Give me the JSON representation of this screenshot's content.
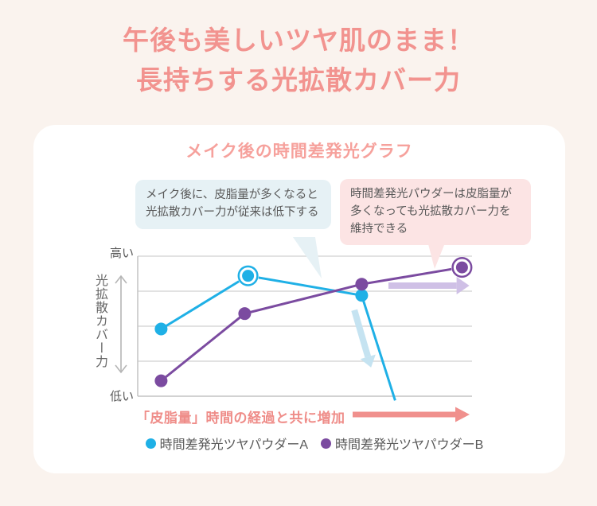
{
  "page": {
    "background": "#faf3ee",
    "card_background": "#ffffff"
  },
  "header": {
    "title_line1": "午後も美しいツヤ肌のまま！",
    "title_line2": "長持ちする光拡散カバー力",
    "title_color": "#f2938f"
  },
  "chart": {
    "title": "メイク後の時間差発光グラフ",
    "title_color": "#f6a19c",
    "callouts": {
      "left": {
        "text": "メイク後に、皮脂量が多くなると光拡散カバー力が従来は低下する",
        "bg": "#e6f1f5"
      },
      "right": {
        "text": "時間差発光パウダーは皮脂量が多くなっても光拡散カバー力を維持できる",
        "bg": "#fce4e4"
      }
    },
    "y_axis": {
      "high_label": "高い",
      "low_label": "低い",
      "title": "光拡散カバー力",
      "arrow_color": "#b5b5b5"
    },
    "x_axis": {
      "caption": "「皮脂量」時間の経過と共に増加",
      "arrow_color": "#f0908d"
    },
    "legend": [
      {
        "label": "時間差発光ツヤパウダーA",
        "color": "#1fb0e6"
      },
      {
        "label": "時間差発光ツヤパウダーB",
        "color": "#7b4ba0"
      }
    ],
    "colors": {
      "grid": "#d8d8d8",
      "axis": "#c3c3c3"
    }
  },
  "chart_data": {
    "type": "line",
    "title": "メイク後の時間差発光グラフ",
    "xlabel": "「皮脂量」時間の経過と共に増加",
    "ylabel": "光拡散カバー力（低い〜高い）",
    "xlim": [
      0,
      1
    ],
    "ylim": [
      0,
      1
    ],
    "grid": true,
    "legend_position": "bottom",
    "series": [
      {
        "name": "時間差発光ツヤパウダーA",
        "color": "#1fb0e6",
        "points": [
          {
            "x": 0.07,
            "y": 0.48,
            "marker": "dot"
          },
          {
            "x": 0.33,
            "y": 0.86,
            "marker": "ring"
          },
          {
            "x": 0.67,
            "y": 0.72,
            "marker": "dot"
          },
          {
            "x": 0.77,
            "y": -0.03,
            "marker": "none"
          }
        ]
      },
      {
        "name": "時間差発光ツヤパウダーB",
        "color": "#7b4ba0",
        "points": [
          {
            "x": 0.07,
            "y": 0.11,
            "marker": "dot"
          },
          {
            "x": 0.32,
            "y": 0.59,
            "marker": "dot"
          },
          {
            "x": 0.67,
            "y": 0.8,
            "marker": "dot"
          },
          {
            "x": 0.97,
            "y": 0.92,
            "marker": "ring"
          }
        ]
      }
    ],
    "annotations": [
      {
        "type": "arrow",
        "meaning": "カバー力を維持できる（B）",
        "color": "#cfc0e6",
        "from": [
          0.75,
          0.79
        ],
        "to": [
          0.992,
          0.79
        ],
        "shaft": 8,
        "head_len": 16,
        "head_w": 22
      },
      {
        "type": "arrow",
        "meaning": "カバー力が低下する（A）",
        "color": "#c5e3f1",
        "from": [
          0.648,
          0.615
        ],
        "to": [
          0.698,
          0.205
        ],
        "shaft": 8,
        "head_len": 14,
        "head_w": 20
      }
    ]
  }
}
